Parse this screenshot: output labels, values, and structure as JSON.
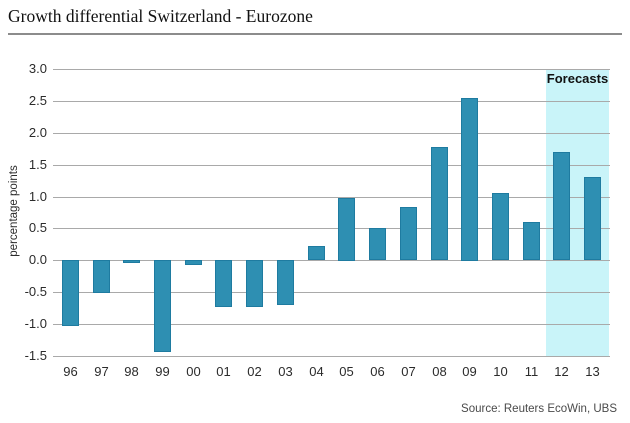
{
  "chart_data": {
    "type": "bar",
    "title": "Growth differential Switzerland - Eurozone",
    "ylabel": "percentage points",
    "xlabel": "",
    "categories": [
      "96",
      "97",
      "98",
      "99",
      "00",
      "01",
      "02",
      "03",
      "04",
      "05",
      "06",
      "07",
      "08",
      "09",
      "10",
      "11",
      "12",
      "13"
    ],
    "values": [
      -1.03,
      -0.51,
      -0.05,
      -1.45,
      -0.08,
      -0.73,
      -0.74,
      -0.7,
      0.22,
      0.98,
      0.5,
      0.83,
      1.77,
      2.55,
      1.05,
      0.6,
      1.7,
      1.3
    ],
    "ylim": [
      -1.5,
      3.0
    ],
    "yticks": [
      3.0,
      2.5,
      2.0,
      1.5,
      1.0,
      0.5,
      0.0,
      -0.5,
      -1.0,
      -1.5
    ],
    "ytick_labels": [
      "3.0",
      "2.5",
      "2.0",
      "1.5",
      "1.0",
      "0.5",
      "0.0",
      "-0.5",
      "-1.0",
      "-1.5"
    ],
    "grid": true,
    "legend_position": "none",
    "forecast": {
      "label": "Forecasts",
      "categories": [
        "12",
        "13"
      ]
    }
  },
  "source": "Source: Reuters EcoWin, UBS",
  "colors": {
    "bar_fill": "#2e8fb2",
    "bar_edge": "#1e7ba0",
    "forecast_band": "#c9f4f9",
    "gridline": "#a9a9a9",
    "title_rule": "#8c8c8c",
    "axis_text": "#2b2b2b",
    "source_text": "#4a4a4a"
  }
}
